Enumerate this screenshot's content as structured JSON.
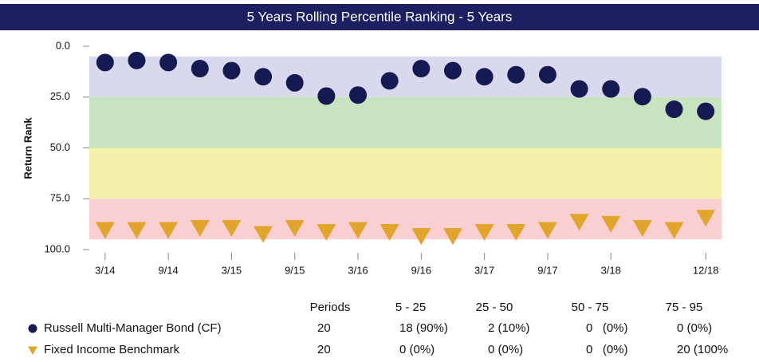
{
  "chart_data": {
    "type": "scatter",
    "title": "5 Years Rolling Percentile Ranking - 5 Years",
    "y_label": "Return Rank",
    "categories": [
      "3/14",
      null,
      "9/14",
      null,
      "3/15",
      null,
      "9/15",
      null,
      "3/16",
      null,
      "9/16",
      null,
      "3/17",
      null,
      "9/17",
      null,
      "3/18",
      null,
      null,
      "12/18"
    ],
    "ylim": [
      0,
      100
    ],
    "y_reversed": true,
    "yticks": [
      {
        "value": 0,
        "label": "0.0"
      },
      {
        "value": 25,
        "label": "25.0"
      },
      {
        "value": 50,
        "label": "50.0"
      },
      {
        "value": 75,
        "label": "75.0"
      },
      {
        "value": 100,
        "label": "100.0"
      }
    ],
    "bands": [
      {
        "from": 5,
        "to": 25,
        "color": "#d9d9ee"
      },
      {
        "from": 25,
        "to": 50,
        "color": "#c8e3bf"
      },
      {
        "from": 50,
        "to": 75,
        "color": "#f3f1a9"
      },
      {
        "from": 75,
        "to": 95,
        "color": "#f9cfd1"
      }
    ],
    "series": [
      {
        "name": "Russell Multi-Manager Bond (CF)",
        "color": "#161a52",
        "marker": "circle",
        "values": [
          8,
          7,
          8,
          11,
          12,
          15,
          18,
          24.5,
          24,
          17,
          11,
          12,
          15,
          14,
          14,
          21,
          21,
          24.8,
          31,
          32
        ]
      },
      {
        "name": "Fixed Income Benchmark",
        "color": "#e0a52a",
        "marker": "triangle",
        "values": [
          90,
          90,
          90,
          89,
          89,
          92,
          89,
          91,
          90,
          91,
          93,
          93,
          91,
          91,
          90,
          86,
          87,
          89,
          90,
          84
        ]
      }
    ],
    "table": {
      "header": [
        "Periods",
        "5 - 25",
        "25 - 50",
        "50 - 75",
        "75 - 95"
      ],
      "rows": [
        [
          "20",
          "18 (90%)",
          "2 (10%)",
          "0   (0%)",
          "0 (0%)"
        ],
        [
          "20",
          "0 (0%)",
          "0 (0%)",
          "0   (0%)",
          "20 (100%"
        ]
      ]
    }
  }
}
